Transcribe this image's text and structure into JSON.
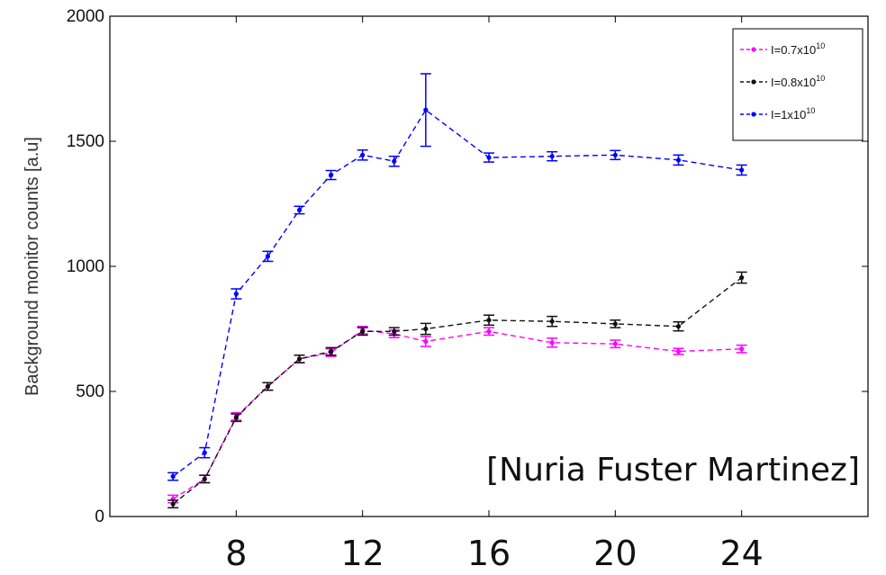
{
  "chart_data": {
    "type": "line",
    "title": "",
    "xlabel": "",
    "ylabel": "Background monitor counts [a.u]",
    "xlim": [
      4,
      28
    ],
    "ylim": [
      0,
      2000
    ],
    "xticks": [
      "8",
      "12",
      "16",
      "20",
      "24"
    ],
    "xtick_values": [
      8,
      12,
      16,
      20,
      24
    ],
    "yticks": [
      "0",
      "500",
      "1000",
      "1500",
      "2000"
    ],
    "ytick_values": [
      0,
      500,
      1000,
      1500,
      2000
    ],
    "grid": false,
    "legend_position": "top-right",
    "series": [
      {
        "name": "I=0.7x10",
        "exponent": "10",
        "color": "#ff00ff",
        "x": [
          6,
          7,
          8,
          9,
          10,
          11,
          12,
          13,
          14,
          16,
          18,
          20,
          22,
          24
        ],
        "y": [
          70,
          150,
          400,
          520,
          630,
          655,
          745,
          730,
          700,
          740,
          695,
          690,
          660,
          670
        ],
        "err": [
          15,
          15,
          15,
          15,
          15,
          15,
          15,
          15,
          20,
          15,
          18,
          15,
          12,
          15
        ]
      },
      {
        "name": "I=0.8x10",
        "exponent": "10",
        "color": "#111111",
        "x": [
          6,
          7,
          8,
          9,
          10,
          11,
          12,
          13,
          14,
          16,
          18,
          20,
          22,
          24
        ],
        "y": [
          50,
          150,
          395,
          520,
          630,
          660,
          740,
          740,
          750,
          785,
          780,
          770,
          760,
          955
        ],
        "err": [
          15,
          15,
          15,
          15,
          15,
          15,
          15,
          15,
          22,
          20,
          20,
          15,
          18,
          22
        ]
      },
      {
        "name": "I=1x10",
        "exponent": "10",
        "color": "#0000ff",
        "x": [
          6,
          7,
          8,
          9,
          10,
          11,
          12,
          13,
          14,
          16,
          18,
          20,
          22,
          24
        ],
        "y": [
          160,
          255,
          890,
          1040,
          1225,
          1365,
          1445,
          1420,
          1625,
          1435,
          1440,
          1445,
          1425,
          1385
        ],
        "err": [
          15,
          20,
          20,
          20,
          15,
          18,
          20,
          20,
          145,
          18,
          18,
          18,
          20,
          20
        ]
      }
    ],
    "annotation": "[Nuria Fuster Martinez]"
  }
}
